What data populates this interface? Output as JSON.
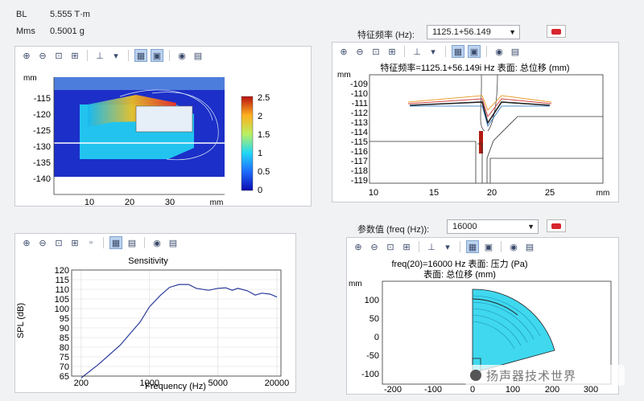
{
  "header": {
    "bl_label": "BL",
    "bl_value": "5.555 T·m",
    "mms_label": "Mms",
    "mms_value": "0.5001 g"
  },
  "eigen": {
    "label": "特征频率 (Hz):",
    "value": "1125.1+56.149",
    "plot_title": "特征频率=1125.1+56.149i Hz   表面: 总位移 (mm)"
  },
  "param": {
    "label": "参数值 (freq (Hz)):",
    "value": "16000",
    "plot_title_line1": "freq(20)=16000 Hz   表面: 压力 (Pa)",
    "plot_title_line2": "表面: 总位移 (mm)"
  },
  "field_plot": {
    "unit": "mm",
    "y_ticks": [
      "-115",
      "-120",
      "-125",
      "-130",
      "-135",
      "-140"
    ],
    "x_ticks": [
      "10",
      "20",
      "30"
    ],
    "colorbar_ticks": [
      "2.5",
      "2",
      "1.5",
      "1",
      "0.5",
      "0"
    ]
  },
  "mode_plot": {
    "unit": "mm",
    "y_ticks": [
      "-109",
      "-110",
      "-111",
      "-112",
      "-113",
      "-114",
      "-115",
      "-116",
      "-117",
      "-118",
      "-119"
    ],
    "x_ticks": [
      "10",
      "15",
      "20",
      "25"
    ]
  },
  "pressure_plot": {
    "unit": "mm",
    "y_ticks": [
      "100",
      "50",
      "0",
      "-50",
      "-100"
    ],
    "x_ticks": [
      "-200",
      "-100",
      "0",
      "100",
      "200",
      "300"
    ]
  },
  "watermark": "扬声器技术世界",
  "chart_data": {
    "type": "line",
    "title": "Sensitivity",
    "xlabel": "Frequency (Hz)",
    "ylabel": "SPL (dB)",
    "x_scale": "log",
    "xlim": [
      160,
      22000
    ],
    "ylim": [
      65,
      120
    ],
    "x_ticks": [
      "200",
      "1000",
      "5000",
      "20000"
    ],
    "y_ticks": [
      "120",
      "115",
      "110",
      "105",
      "100",
      "95",
      "90",
      "85",
      "80",
      "75",
      "70",
      "65"
    ],
    "series": [
      {
        "x": [
          200,
          300,
          500,
          800,
          1000,
          1300,
          1600,
          2000,
          2500,
          3000,
          4000,
          5000,
          6000,
          7000,
          8000,
          10000,
          12000,
          14000,
          17000,
          20000
        ],
        "values": [
          64,
          71,
          81,
          93,
          101,
          107,
          111,
          112.5,
          112.5,
          110.5,
          109.5,
          110.5,
          110.8,
          109.5,
          110.5,
          109.2,
          107,
          108,
          107.5,
          106
        ]
      }
    ]
  }
}
